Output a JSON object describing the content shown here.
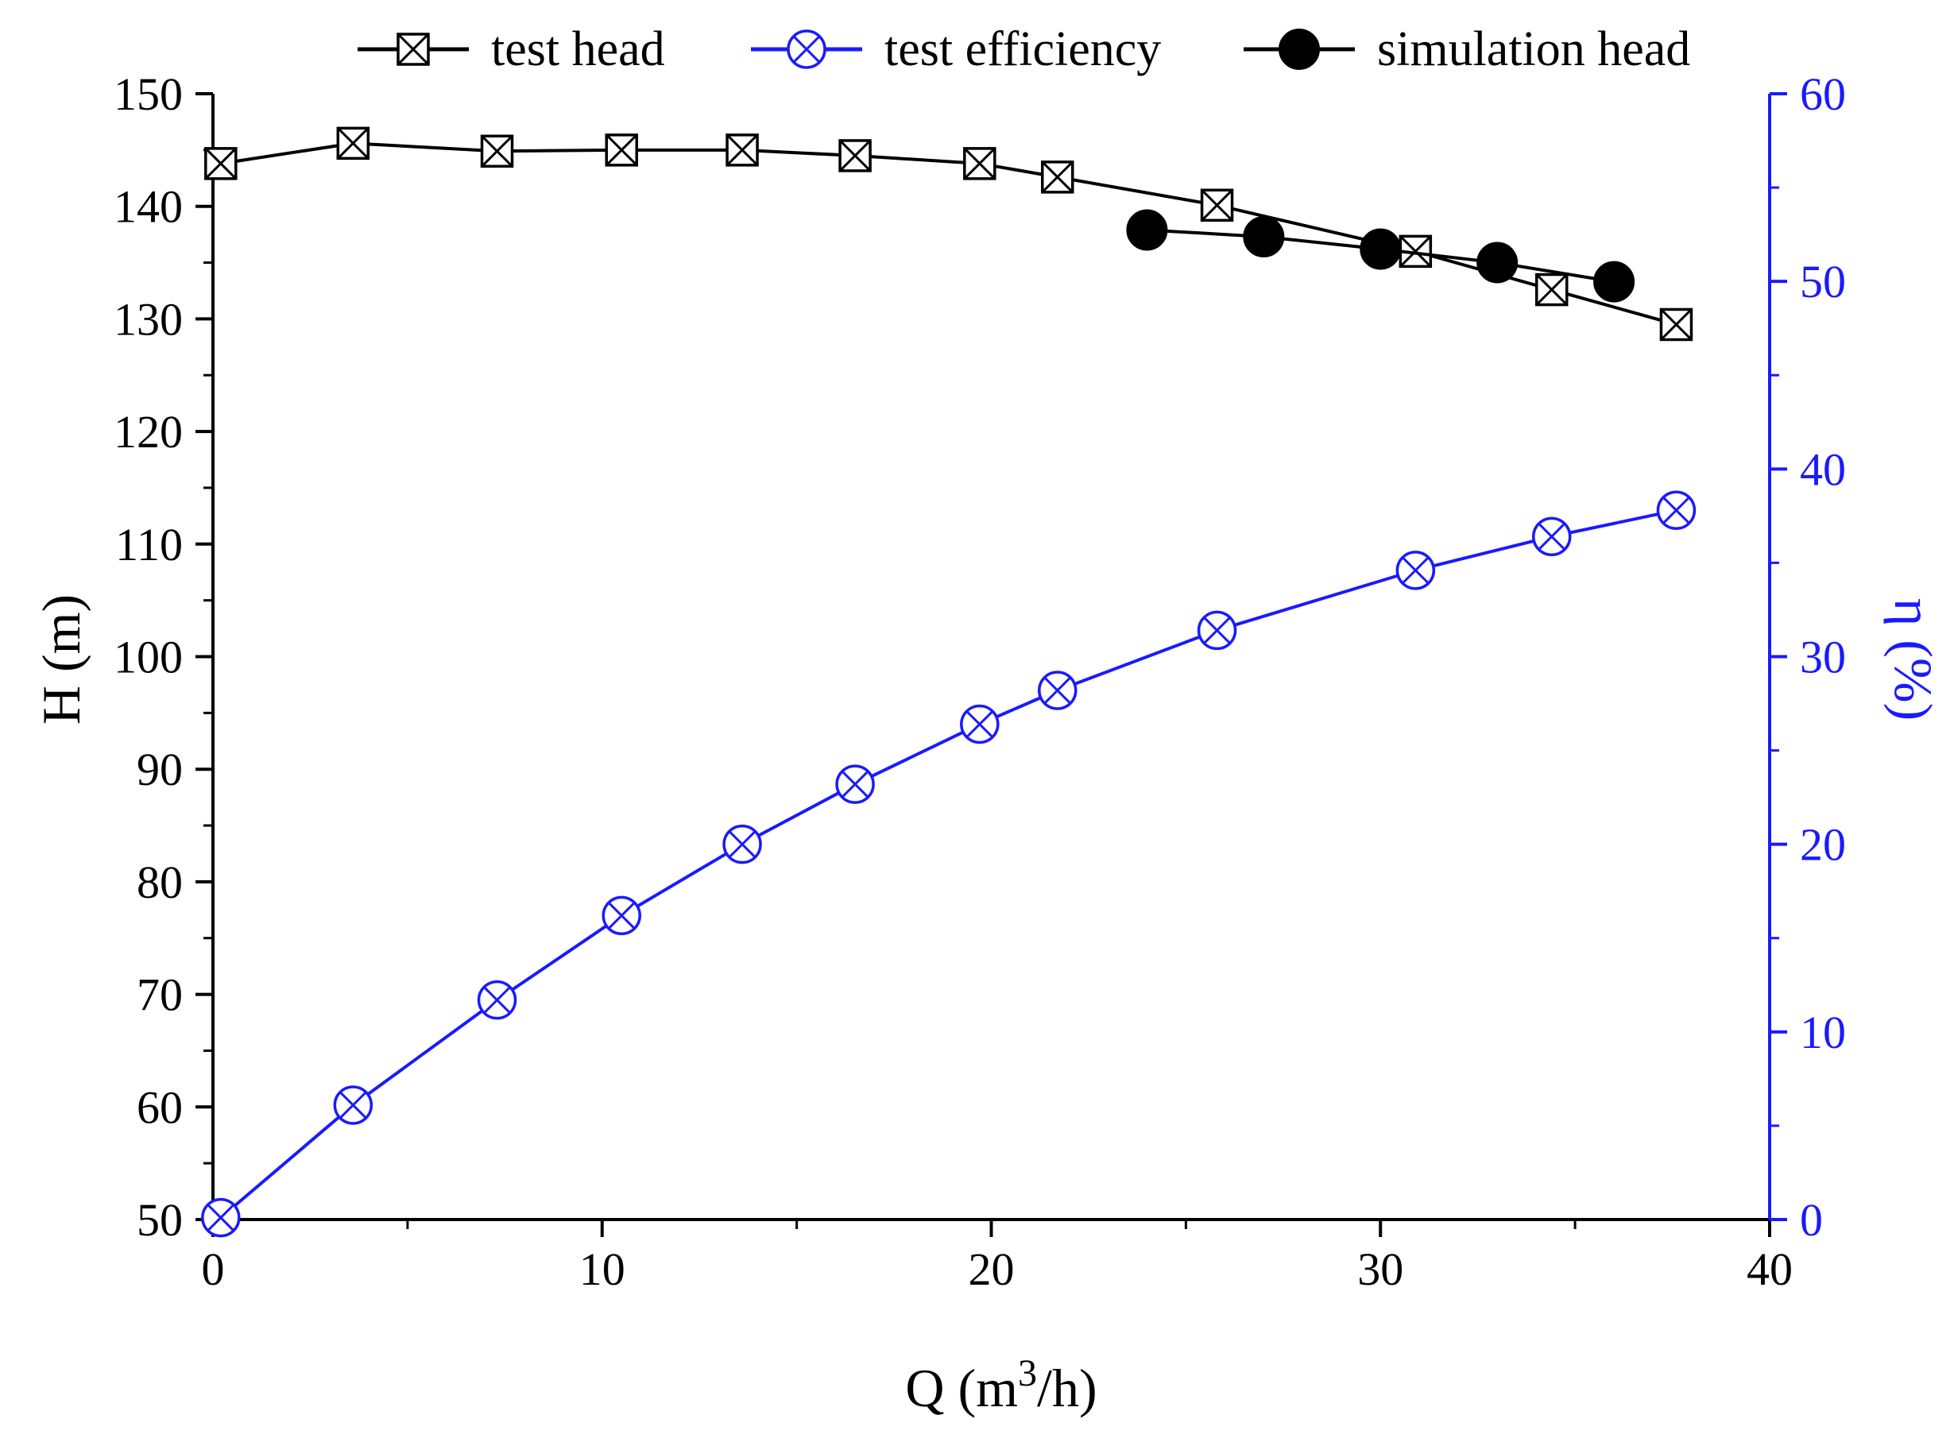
{
  "chart_data": {
    "type": "line",
    "title": "",
    "xlabel_prefix": "Q (m",
    "xlabel_sup": "3",
    "xlabel_suffix": "/h)",
    "ylabel": "H (m)",
    "y2label": "η (%)",
    "xlim": [
      0,
      40
    ],
    "ylim": [
      50,
      150
    ],
    "y2lim": [
      0,
      60
    ],
    "x_ticks": [
      "0",
      "10",
      "20",
      "30",
      "40"
    ],
    "y_ticks": [
      "50",
      "60",
      "70",
      "80",
      "90",
      "100",
      "110",
      "120",
      "130",
      "140",
      "150"
    ],
    "y2_ticks": [
      "0",
      "10",
      "20",
      "30",
      "40",
      "50",
      "60"
    ],
    "legend_position": "top",
    "grid": false,
    "colors": {
      "black": "#000000",
      "blue": "#1a1aff"
    },
    "series": [
      {
        "name": "test head",
        "axis": "left",
        "color": "#000000",
        "marker": "square-x",
        "x": [
          0.2,
          3.6,
          7.3,
          10.5,
          13.6,
          16.5,
          19.7,
          21.7,
          25.8,
          30.9,
          34.4,
          37.6
        ],
        "y": [
          143.8,
          145.6,
          144.9,
          145.0,
          145.0,
          144.5,
          143.8,
          142.6,
          140.1,
          136.0,
          132.6,
          129.5
        ]
      },
      {
        "name": "test efficiency",
        "axis": "right",
        "color": "#1a1aff",
        "marker": "circle-x",
        "x": [
          0.2,
          3.6,
          7.3,
          10.5,
          13.6,
          16.5,
          19.7,
          21.7,
          25.8,
          30.9,
          34.4,
          37.6
        ],
        "y": [
          0.1,
          6.1,
          11.7,
          16.2,
          20.0,
          23.2,
          26.4,
          28.2,
          31.4,
          34.6,
          36.4,
          37.8
        ]
      },
      {
        "name": "simulation head",
        "axis": "left",
        "color": "#000000",
        "marker": "filled-circle",
        "x": [
          24.0,
          27.0,
          30.0,
          33.0,
          36.0
        ],
        "y": [
          137.9,
          137.3,
          136.2,
          135.0,
          133.3
        ]
      }
    ]
  }
}
